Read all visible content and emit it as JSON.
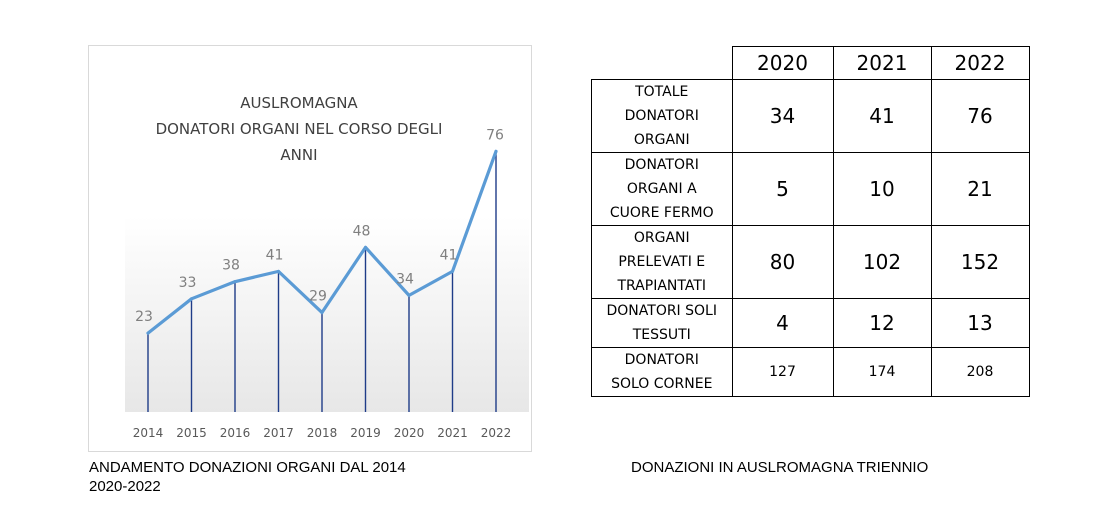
{
  "chart_data": {
    "type": "line",
    "title_lines": [
      "AUSLROMAGNA",
      "DONATORI  ORGANI  NEL CORSO  DEGLI",
      "ANNI"
    ],
    "categories": [
      "2014",
      "2015",
      "2016",
      "2017",
      "2018",
      "2019",
      "2020",
      "2021",
      "2022"
    ],
    "series": [
      {
        "values": [
          23,
          33,
          38,
          41,
          29,
          48,
          34,
          41,
          76
        ]
      }
    ],
    "data_labels": [
      "23",
      "33",
      "38",
      "41",
      "29",
      "48",
      "34",
      "41",
      "76"
    ],
    "xlabel": "",
    "ylabel": "",
    "ylim": [
      0,
      80
    ],
    "grid": false,
    "drop_lines": true,
    "line_color": "#5b9bd5",
    "drop_line_color": "#1f3c88"
  },
  "captions": {
    "left_line1": "ANDAMENTO DONAZIONI ORGANI DAL 2014",
    "left_line2": "2020-2022",
    "right": "DONAZIONI IN AUSLROMAGNA TRIENNIO"
  },
  "table": {
    "columns": [
      "2020",
      "2021",
      "2022"
    ],
    "rows": [
      {
        "label_lines": [
          "TOTALE",
          "DONATORI",
          "ORGANI"
        ],
        "values": [
          "34",
          "41",
          "76"
        ],
        "size": "big",
        "height": 66
      },
      {
        "label_lines": [
          "DONATORI",
          "ORGANI A",
          "CUORE FERMO"
        ],
        "values": [
          "5",
          "10",
          "21"
        ],
        "size": "big",
        "height": 72
      },
      {
        "label_lines": [
          "ORGANI",
          "PRELEVATI E",
          "TRAPIANTATI"
        ],
        "values": [
          "80",
          "102",
          "152"
        ],
        "size": "big",
        "height": 72
      },
      {
        "label_lines": [
          "DONATORI SOLI",
          "TESSUTI"
        ],
        "values": [
          "4",
          "12",
          "13"
        ],
        "size": "big",
        "height": 48
      },
      {
        "label_lines": [
          "DONATORI",
          "SOLO CORNEE"
        ],
        "values": [
          "127",
          "174",
          "208"
        ],
        "size": "small",
        "height": 48
      }
    ]
  }
}
